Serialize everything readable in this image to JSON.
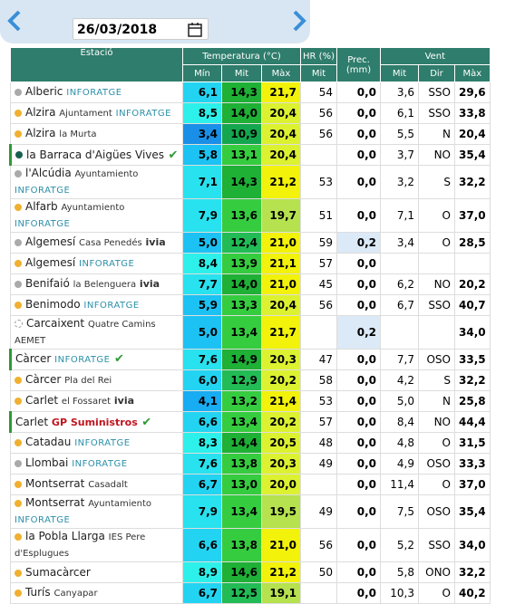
{
  "header": {
    "date": "26/03/2018"
  },
  "table": {
    "columns": {
      "station": "Estació",
      "temp": "Temperatura (°C)",
      "hr": "HR (%)",
      "prec": "Prec. (mm)",
      "wind": "Vent",
      "min": "Mín",
      "mit": "Mit",
      "max": "Màx",
      "hr_mit": "Mit",
      "w_mit": "Mit",
      "w_dir": "Dir",
      "w_max": "Màx"
    },
    "rows": [
      {
        "name": "Alberic",
        "place": null,
        "org": "INFORATGE",
        "dot": "gray",
        "verified": false,
        "min": "6,1",
        "mit": "14,3",
        "max": "21,7",
        "hr": "54",
        "prec": "0,0",
        "wmit": "3,6",
        "dir": "SSO",
        "wmax": "29,6"
      },
      {
        "name": "Alzira",
        "place": "Ajuntament",
        "org": "INFORATGE",
        "dot": "orange",
        "verified": false,
        "min": "8,5",
        "mit": "14,0",
        "max": "20,4",
        "hr": "56",
        "prec": "0,0",
        "wmit": "6,1",
        "dir": "SSO",
        "wmax": "33,8"
      },
      {
        "name": "Alzira",
        "place": "la Murta",
        "org": null,
        "dot": "orange",
        "verified": false,
        "min": "3,4",
        "mit": "10,9",
        "max": "20,4",
        "hr": "56",
        "prec": "0,0",
        "wmit": "5,5",
        "dir": "N",
        "wmax": "20,4"
      },
      {
        "name": "la Barraca d'Aigües Vives",
        "place": null,
        "org": null,
        "dot": "teal",
        "verified": true,
        "min": "5,8",
        "mit": "13,1",
        "max": "20,4",
        "hr": null,
        "prec": "0,0",
        "wmit": "3,7",
        "dir": "NO",
        "wmax": "35,4"
      },
      {
        "name": "l'Alcúdia",
        "place": "Ayuntamiento",
        "org": "INFORATGE",
        "dot": "gray",
        "verified": false,
        "min": "7,1",
        "mit": "14,3",
        "max": "21,2",
        "hr": "53",
        "prec": "0,0",
        "wmit": "3,2",
        "dir": "S",
        "wmax": "32,2"
      },
      {
        "name": "Alfarb",
        "place": "Ayuntamiento",
        "org": "INFORATGE",
        "dot": "orange",
        "verified": false,
        "min": "7,9",
        "mit": "13,6",
        "max": "19,7",
        "hr": "51",
        "prec": "0,0",
        "wmit": "7,1",
        "dir": "O",
        "wmax": "37,0"
      },
      {
        "name": "Algemesí",
        "place": "Casa Penedés",
        "org": "ivia",
        "dot": "gray",
        "verified": false,
        "min": "5,0",
        "mit": "12,4",
        "max": "21,0",
        "hr": "59",
        "prec": "0,2",
        "wmit": "3,4",
        "dir": "O",
        "wmax": "28,5"
      },
      {
        "name": "Algemesí",
        "place": null,
        "org": "INFORATGE",
        "dot": "orange",
        "verified": false,
        "min": "8,4",
        "mit": "13,9",
        "max": "21,1",
        "hr": "57",
        "prec": "0,0",
        "wmit": null,
        "dir": null,
        "wmax": null
      },
      {
        "name": "Benifaió",
        "place": "la Belenguera",
        "org": "ivia",
        "dot": "gray",
        "verified": false,
        "min": "7,7",
        "mit": "14,0",
        "max": "21,0",
        "hr": "45",
        "prec": "0,0",
        "wmit": "6,2",
        "dir": "NO",
        "wmax": "20,2"
      },
      {
        "name": "Benimodo",
        "place": null,
        "org": "INFORATGE",
        "dot": "orange",
        "verified": false,
        "min": "5,9",
        "mit": "13,3",
        "max": "20,4",
        "hr": "56",
        "prec": "0,0",
        "wmit": "6,7",
        "dir": "SSO",
        "wmax": "40,7"
      },
      {
        "name": "Carcaixent",
        "place": "Quatre Camins",
        "org": "AEMET",
        "dot": "dashed",
        "verified": false,
        "min": "5,0",
        "mit": "13,4",
        "max": "21,7",
        "hr": null,
        "prec": "0,2",
        "wmit": null,
        "dir": null,
        "wmax": "34,0"
      },
      {
        "name": "Càrcer",
        "place": null,
        "org": "INFORATGE",
        "dot": "none",
        "verified": true,
        "min": "7,6",
        "mit": "14,9",
        "max": "20,3",
        "hr": "47",
        "prec": "0,0",
        "wmit": "7,7",
        "dir": "OSO",
        "wmax": "33,5"
      },
      {
        "name": "Càrcer",
        "place": "Pla del Rei",
        "org": null,
        "dot": "orange",
        "verified": false,
        "min": "6,0",
        "mit": "12,9",
        "max": "20,2",
        "hr": "58",
        "prec": "0,0",
        "wmit": "4,2",
        "dir": "S",
        "wmax": "32,2"
      },
      {
        "name": "Carlet",
        "place": "el Fossaret",
        "org": "ivia",
        "dot": "orange",
        "verified": false,
        "min": "4,1",
        "mit": "13,2",
        "max": "21,4",
        "hr": "53",
        "prec": "0,0",
        "wmit": "5,0",
        "dir": "N",
        "wmax": "25,8"
      },
      {
        "name": "Carlet",
        "place": null,
        "org": "GP Suministros",
        "dot": "none",
        "verified": true,
        "min": "6,6",
        "mit": "13,4",
        "max": "20,2",
        "hr": "57",
        "prec": "0,0",
        "wmit": "8,4",
        "dir": "NO",
        "wmax": "44,4"
      },
      {
        "name": "Catadau",
        "place": null,
        "org": "INFORATGE",
        "dot": "orange",
        "verified": false,
        "min": "8,3",
        "mit": "14,4",
        "max": "20,5",
        "hr": "48",
        "prec": "0,0",
        "wmit": "4,8",
        "dir": "O",
        "wmax": "31,5"
      },
      {
        "name": "Llombai",
        "place": null,
        "org": "INFORATGE",
        "dot": "gray",
        "verified": false,
        "min": "7,6",
        "mit": "13,8",
        "max": "20,3",
        "hr": "49",
        "prec": "0,0",
        "wmit": "4,9",
        "dir": "OSO",
        "wmax": "33,3"
      },
      {
        "name": "Montserrat",
        "place": "Casadalt",
        "org": null,
        "dot": "orange",
        "verified": false,
        "min": "6,7",
        "mit": "13,0",
        "max": "20,0",
        "hr": null,
        "prec": "0,0",
        "wmit": "11,4",
        "dir": "O",
        "wmax": "37,0"
      },
      {
        "name": "Montserrat",
        "place": "Ayuntamiento",
        "org": "INFORATGE",
        "dot": "orange",
        "verified": false,
        "min": "7,9",
        "mit": "13,4",
        "max": "19,5",
        "hr": "49",
        "prec": "0,0",
        "wmit": "7,5",
        "dir": "OSO",
        "wmax": "35,4"
      },
      {
        "name": "la Pobla Llarga",
        "place": "IES Pere d'Esplugues",
        "org": null,
        "dot": "orange",
        "verified": false,
        "min": "6,6",
        "mit": "13,8",
        "max": "21,0",
        "hr": "56",
        "prec": "0,0",
        "wmit": "5,2",
        "dir": "SSO",
        "wmax": "34,0"
      },
      {
        "name": "Sumacàrcer",
        "place": null,
        "org": null,
        "dot": "orange",
        "verified": false,
        "min": "8,9",
        "mit": "14,6",
        "max": "21,2",
        "hr": "50",
        "prec": "0,0",
        "wmit": "5,8",
        "dir": "ONO",
        "wmax": "32,2"
      },
      {
        "name": "Turís",
        "place": "Canyapar",
        "org": null,
        "dot": "orange",
        "verified": false,
        "min": "6,7",
        "mit": "12,5",
        "max": "19,1",
        "hr": null,
        "prec": "0,0",
        "wmit": "10,3",
        "dir": "O",
        "wmax": "40,2"
      }
    ]
  }
}
